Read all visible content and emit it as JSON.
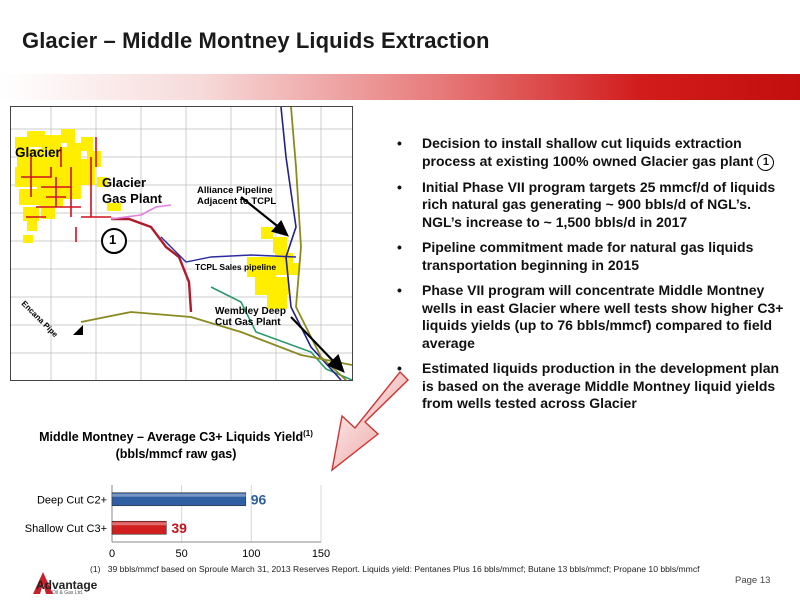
{
  "slide": {
    "title": "Glacier – Middle Montney Liquids Extraction",
    "page_label": "Page 13"
  },
  "map": {
    "label_glacier": "Glacier",
    "label_plant_line1": "Glacier",
    "label_plant_line2": "Gas Plant",
    "label_marker": "1",
    "label_alliance_line1": "Alliance Pipeline",
    "label_alliance_line2": "Adjacent to TCPL",
    "label_tcpl": "TCPL Sales pipeline",
    "label_encana": "Encana Pipe",
    "label_wembley_line1": "Wembley Deep",
    "label_wembley_line2": "Cut Gas Plant"
  },
  "bullets": [
    {
      "text": "Decision to install shallow cut liquids extraction process at existing 100% owned Glacier gas plant",
      "marker": "1"
    },
    {
      "text": "Initial Phase VII program targets 25 mmcf/d of liquids rich natural gas generating ~ 900 bbls/d of NGL’s. NGL’s increase to ~ 1,500 bbls/d in 2017"
    },
    {
      "text": "Pipeline commitment made for natural gas liquids transportation beginning in 2015"
    },
    {
      "text": "Phase VII program will concentrate Middle Montney wells in east Glacier where well tests show higher C3+ liquids yields (up to 76 bbls/mmcf) compared to field average"
    },
    {
      "text": "Estimated liquids production in the development plan is based on the average Middle Montney liquid yields from wells tested across Glacier"
    }
  ],
  "chart_title_line1": "Middle Montney – Average C3+ Liquids Yield",
  "chart_title_sup": "(1)",
  "chart_title_line2": "(bbls/mmcf raw gas)",
  "chart_data": {
    "type": "bar",
    "orientation": "horizontal",
    "title": "Middle Montney – Average C3+ Liquids Yield(1) (bbls/mmcf raw gas)",
    "categories": [
      "Deep Cut C2+",
      "Shallow Cut C3+"
    ],
    "values": [
      96,
      39
    ],
    "value_labels": [
      "96",
      "39"
    ],
    "bar_colors": [
      "#2e5fa3",
      "#d11f1f"
    ],
    "label_colors": [
      "#2e5fa3",
      "#c0141c"
    ],
    "xlim": [
      0,
      150
    ],
    "xticks": [
      "0",
      "50",
      "100",
      "150"
    ],
    "grid": true
  },
  "footnote": {
    "marker": "(1)",
    "text": "39 bbls/mmcf based on Sproule March 31, 2013 Reserves Report. Liquids yield: Pentanes Plus 16 bbls/mmcf; Butane 13 bbls/mmcf; Propane 10 bbls/mmcf"
  },
  "logo": {
    "name": "Advantage",
    "subtitle": "Oil & Gas Ltd."
  }
}
